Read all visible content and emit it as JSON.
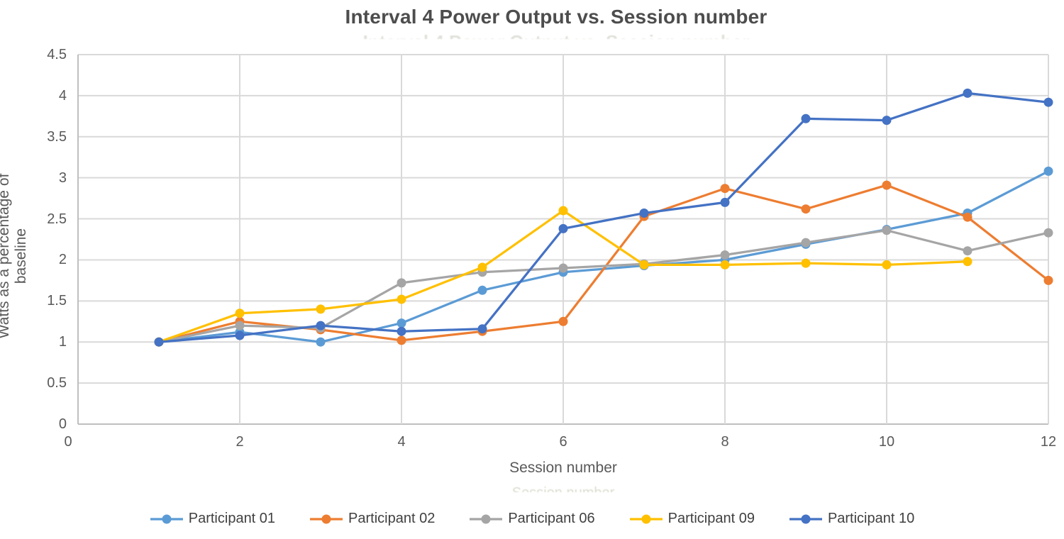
{
  "chart": {
    "title": "Interval 4 Power Output vs. Session number",
    "xlabel": "Session number",
    "ylabel": "Watts as a percentage of baseline"
  },
  "chart_data": {
    "type": "line",
    "title": "Interval 4 Power Output vs. Session number",
    "xlabel": "Session number",
    "ylabel": "Watts as a percentage of baseline",
    "x": [
      1,
      2,
      3,
      4,
      5,
      6,
      7,
      8,
      9,
      10,
      11,
      12
    ],
    "xlim": [
      0,
      12
    ],
    "ylim": [
      0,
      4.5
    ],
    "x_ticks": [
      0,
      2,
      4,
      6,
      8,
      10,
      12
    ],
    "y_ticks": [
      0,
      0.5,
      1,
      1.5,
      2,
      2.5,
      3,
      3.5,
      4,
      4.5
    ],
    "grid": true,
    "legend_position": "bottom",
    "series": [
      {
        "name": "Participant 01",
        "color": "#5B9BD5",
        "values": [
          1.0,
          1.12,
          1.0,
          1.23,
          1.63,
          1.85,
          1.93,
          2.0,
          2.19,
          2.37,
          2.57,
          3.08
        ]
      },
      {
        "name": "Participant 02",
        "color": "#ED7D31",
        "values": [
          1.0,
          1.25,
          1.15,
          1.02,
          1.13,
          1.25,
          2.53,
          2.87,
          2.62,
          2.91,
          2.52,
          1.75
        ]
      },
      {
        "name": "Participant 06",
        "color": "#A5A5A5",
        "values": [
          1.0,
          1.2,
          1.17,
          1.72,
          1.85,
          1.9,
          1.95,
          2.06,
          2.21,
          2.36,
          2.11,
          2.33
        ]
      },
      {
        "name": "Participant 09",
        "color": "#FFC000",
        "values": [
          1.0,
          1.35,
          1.4,
          1.52,
          1.91,
          2.6,
          1.94,
          1.94,
          1.96,
          1.94,
          1.98,
          null
        ]
      },
      {
        "name": "Participant 10",
        "color": "#4472C4",
        "values": [
          1.0,
          1.08,
          1.2,
          1.13,
          1.16,
          2.38,
          2.57,
          2.7,
          3.72,
          3.7,
          4.03,
          3.92
        ]
      }
    ]
  },
  "style_colors": {
    "gridline": "#D9D9D9",
    "axis_line": "#BFBFBF",
    "tick_text": "#595959",
    "title_text": "#4d4d4d",
    "legend_text": "#404040"
  }
}
